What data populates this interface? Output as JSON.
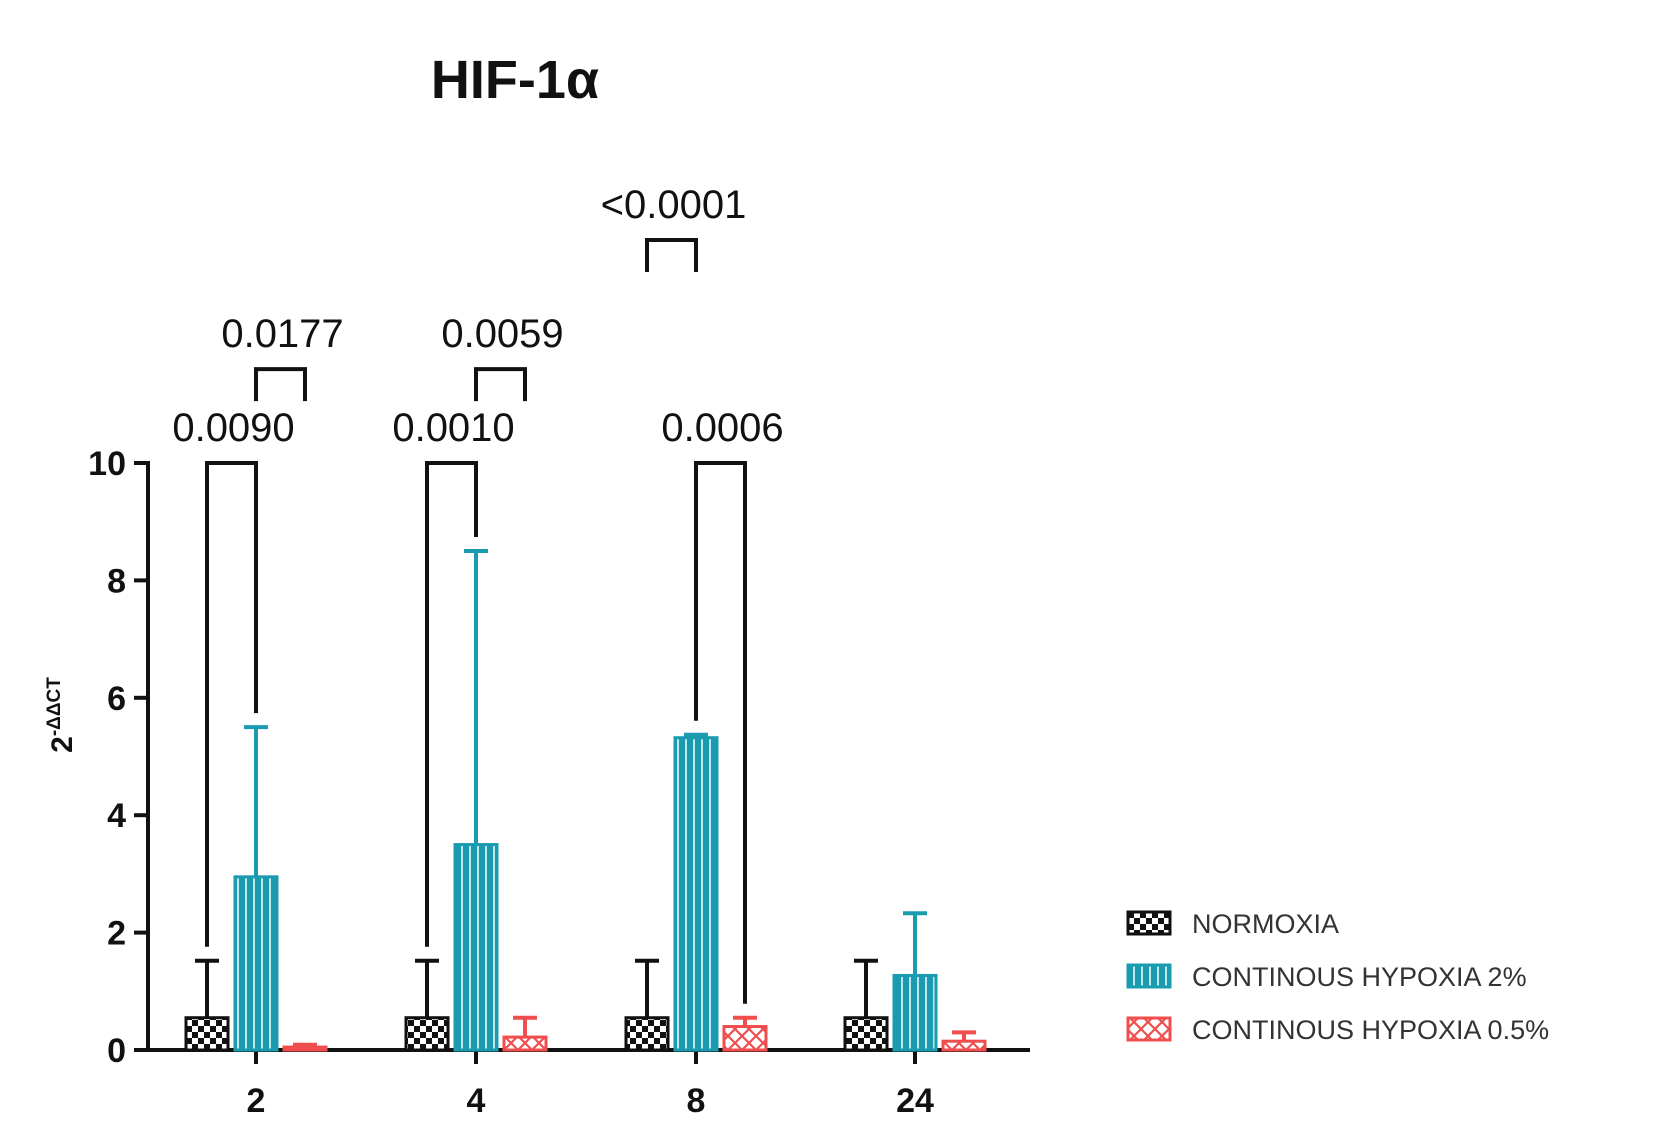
{
  "chart_data": {
    "type": "bar",
    "title": "HIF-1α",
    "ylabel_base": "2",
    "ylabel_exponent": "-ΔΔCT",
    "xlabel": "",
    "categories": [
      "2",
      "4",
      "8",
      "24"
    ],
    "ylim": [
      0,
      10
    ],
    "yticks": [
      "0",
      "2",
      "4",
      "6",
      "8",
      "10"
    ],
    "series": [
      {
        "name": "NORMOXIA",
        "color": "#111111",
        "pattern": "checker",
        "values": [
          0.55,
          0.55,
          0.55,
          0.55
        ],
        "errors": [
          0.97,
          0.97,
          0.97,
          0.97
        ]
      },
      {
        "name": "CONTINOUS HYPOXIA 2%",
        "color": "#1a9bb0",
        "pattern": "vertical-stripes",
        "values": [
          2.95,
          3.5,
          5.32,
          1.27
        ],
        "errors": [
          2.55,
          5.0,
          0.05,
          1.06
        ]
      },
      {
        "name": "CONTINOUS HYPOXIA 0.5%",
        "color": "#f04e4e",
        "pattern": "cross",
        "values": [
          0.05,
          0.22,
          0.4,
          0.15
        ],
        "errors": [
          0.04,
          0.33,
          0.15,
          0.15
        ]
      }
    ],
    "comparisons": [
      {
        "label": "0.0090",
        "category": 0,
        "from_series": 0,
        "to_series": 1,
        "level": 10.0
      },
      {
        "label": "0.0177",
        "category": 0,
        "from_series": 1,
        "to_series": 2,
        "level": 11.6
      },
      {
        "label": "0.0010",
        "category": 1,
        "from_series": 0,
        "to_series": 1,
        "level": 10.0
      },
      {
        "label": "0.0059",
        "category": 1,
        "from_series": 1,
        "to_series": 2,
        "level": 11.6
      },
      {
        "label": "<0.0001",
        "category": 2,
        "from_series": 0,
        "to_series": 1,
        "level": 13.8
      },
      {
        "label": "0.0006",
        "category": 2,
        "from_series": 1,
        "to_series": 2,
        "level": 10.0
      }
    ],
    "legend_position": "bottom-right",
    "grid": false
  }
}
